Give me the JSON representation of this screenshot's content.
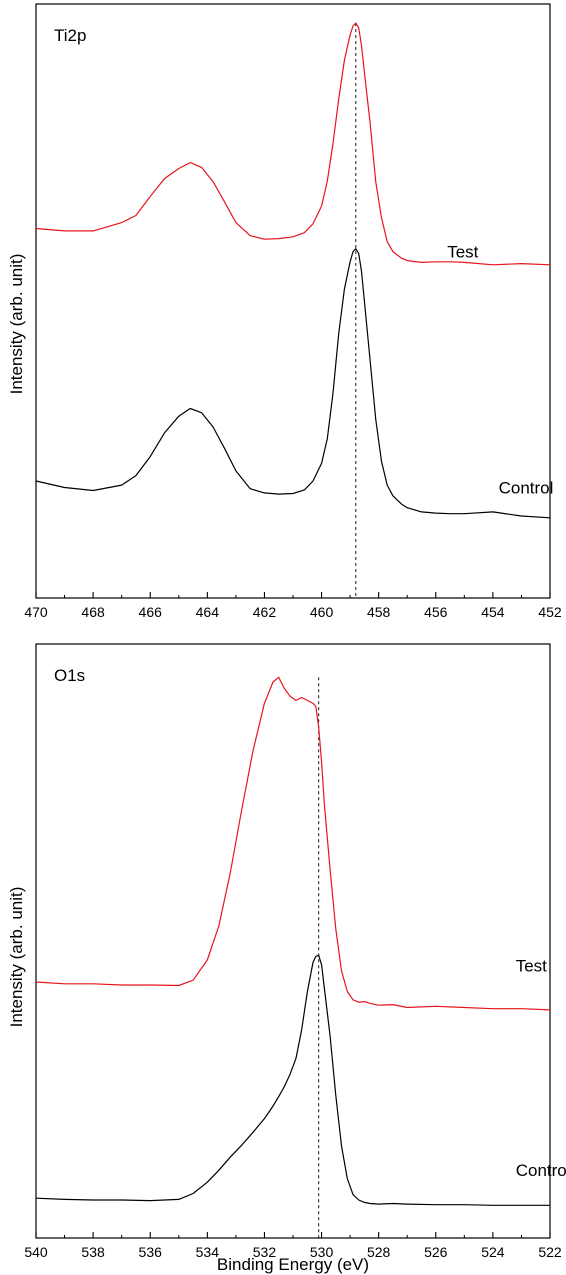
{
  "chart_data": [
    {
      "type": "line",
      "panel_label": "Ti2p",
      "xlabel": "",
      "ylabel": "Intensity (arb. unit)",
      "xlim": [
        470,
        452
      ],
      "x_reversed": true,
      "xticks": [
        470,
        468,
        466,
        464,
        462,
        460,
        458,
        456,
        454,
        452
      ],
      "xtick_labels": [
        "470",
        "468",
        "466",
        "464",
        "462",
        "460",
        "458",
        "456",
        "454",
        "452"
      ],
      "ylim": [
        0,
        1
      ],
      "y_tick_labels_shown": false,
      "reference_line_x": 458.8,
      "series": [
        {
          "name": "Test",
          "color": "#e8141c",
          "label_position": {
            "x": 455.6,
            "y": 0.573
          },
          "x": [
            470,
            469,
            468,
            467,
            466.5,
            466,
            465.5,
            465,
            464.6,
            464.2,
            463.8,
            463.4,
            463,
            462.5,
            462,
            461.5,
            461,
            460.6,
            460.3,
            460,
            459.8,
            459.6,
            459.4,
            459.2,
            459,
            458.9,
            458.8,
            458.7,
            458.6,
            458.5,
            458.3,
            458.1,
            457.9,
            457.7,
            457.5,
            457.2,
            457,
            456.5,
            456,
            455.5,
            455,
            454,
            453,
            452
          ],
          "y": [
            0.622,
            0.618,
            0.618,
            0.632,
            0.644,
            0.676,
            0.706,
            0.723,
            0.733,
            0.725,
            0.701,
            0.667,
            0.632,
            0.61,
            0.604,
            0.605,
            0.608,
            0.615,
            0.63,
            0.66,
            0.702,
            0.765,
            0.84,
            0.905,
            0.948,
            0.963,
            0.968,
            0.96,
            0.93,
            0.885,
            0.8,
            0.7,
            0.64,
            0.6,
            0.583,
            0.572,
            0.568,
            0.565,
            0.566,
            0.566,
            0.565,
            0.561,
            0.563,
            0.561
          ]
        },
        {
          "name": "Control",
          "color": "#000000",
          "label_position": {
            "x": 453.8,
            "y": 0.176
          },
          "x": [
            470,
            469,
            468,
            467,
            466.5,
            466,
            465.5,
            465,
            464.6,
            464.2,
            463.8,
            463.4,
            463,
            462.5,
            462,
            461.5,
            461,
            460.6,
            460.3,
            460,
            459.8,
            459.6,
            459.4,
            459.2,
            459,
            458.9,
            458.8,
            458.7,
            458.6,
            458.5,
            458.3,
            458.1,
            457.9,
            457.7,
            457.5,
            457.2,
            457,
            456.5,
            456,
            455.5,
            455,
            454,
            453,
            452
          ],
          "y": [
            0.197,
            0.186,
            0.181,
            0.19,
            0.206,
            0.238,
            0.278,
            0.306,
            0.319,
            0.312,
            0.288,
            0.252,
            0.214,
            0.184,
            0.177,
            0.175,
            0.176,
            0.182,
            0.197,
            0.227,
            0.268,
            0.345,
            0.445,
            0.52,
            0.566,
            0.583,
            0.588,
            0.58,
            0.55,
            0.5,
            0.4,
            0.3,
            0.23,
            0.19,
            0.172,
            0.158,
            0.152,
            0.145,
            0.143,
            0.142,
            0.142,
            0.145,
            0.138,
            0.135
          ]
        }
      ]
    },
    {
      "type": "line",
      "panel_label": "O1s",
      "xlabel": "Binding Energy (eV)",
      "ylabel": "Intensity (arb. unit)",
      "xlim": [
        540,
        522
      ],
      "x_reversed": true,
      "xticks": [
        540,
        538,
        536,
        534,
        532,
        530,
        528,
        526,
        524,
        522
      ],
      "xtick_labels": [
        "540",
        "538",
        "536",
        "534",
        "532",
        "530",
        "528",
        "526",
        "524",
        "522"
      ],
      "ylim": [
        0,
        1
      ],
      "y_tick_labels_shown": false,
      "reference_line_x": 530.1,
      "series": [
        {
          "name": "Test",
          "color": "#e8141c",
          "label_position": {
            "x": 523.2,
            "y": 0.449
          },
          "x": [
            540,
            539,
            538,
            537,
            536,
            535,
            534.5,
            534,
            533.6,
            533.2,
            532.8,
            532.4,
            532,
            531.7,
            531.5,
            531.3,
            531.1,
            530.9,
            530.7,
            530.5,
            530.3,
            530.2,
            530.1,
            530,
            529.9,
            529.7,
            529.5,
            529.3,
            529.1,
            528.9,
            528.7,
            528.5,
            528.3,
            528,
            527.5,
            527,
            526,
            525,
            524,
            523,
            522
          ],
          "y": [
            0.431,
            0.428,
            0.428,
            0.426,
            0.426,
            0.425,
            0.434,
            0.468,
            0.525,
            0.614,
            0.72,
            0.82,
            0.9,
            0.936,
            0.944,
            0.925,
            0.912,
            0.905,
            0.91,
            0.905,
            0.9,
            0.895,
            0.86,
            0.8,
            0.73,
            0.62,
            0.52,
            0.45,
            0.415,
            0.401,
            0.397,
            0.398,
            0.395,
            0.392,
            0.393,
            0.388,
            0.39,
            0.388,
            0.386,
            0.386,
            0.384
          ]
        },
        {
          "name": "Control",
          "color": "#000000",
          "label_position": {
            "x": 523.2,
            "y": 0.104
          },
          "x": [
            540,
            539,
            538,
            537,
            536,
            535,
            534.5,
            534,
            533.6,
            533.2,
            532.8,
            532.4,
            532,
            531.7,
            531.5,
            531.3,
            531.1,
            530.9,
            530.7,
            530.5,
            530.3,
            530.2,
            530.1,
            530,
            529.9,
            529.7,
            529.5,
            529.3,
            529.1,
            528.9,
            528.7,
            528.5,
            528.3,
            528,
            527.5,
            527,
            526,
            525,
            524,
            523,
            522
          ],
          "y": [
            0.067,
            0.065,
            0.064,
            0.064,
            0.063,
            0.065,
            0.075,
            0.094,
            0.114,
            0.136,
            0.156,
            0.178,
            0.201,
            0.222,
            0.238,
            0.255,
            0.276,
            0.302,
            0.35,
            0.414,
            0.464,
            0.474,
            0.476,
            0.46,
            0.42,
            0.34,
            0.24,
            0.155,
            0.1,
            0.073,
            0.064,
            0.06,
            0.058,
            0.057,
            0.058,
            0.057,
            0.056,
            0.056,
            0.055,
            0.055,
            0.055
          ]
        }
      ]
    }
  ]
}
